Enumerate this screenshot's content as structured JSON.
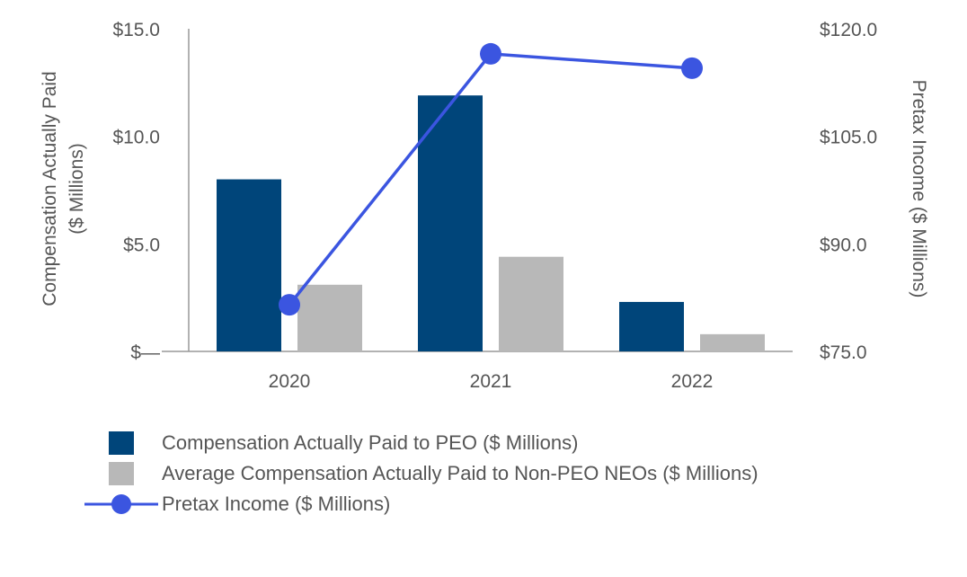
{
  "chart_data": {
    "type": "bar",
    "categories": [
      "2020",
      "2021",
      "2022"
    ],
    "series": [
      {
        "name": "Compensation Actually Paid to PEO ($ Millions)",
        "kind": "bar",
        "axis": "left",
        "color": "#00457A",
        "values": [
          8.0,
          11.9,
          2.3
        ]
      },
      {
        "name": "Average Compensation Actually Paid to Non-PEO NEOs ($ Millions)",
        "kind": "bar",
        "axis": "left",
        "color": "#B8B8B8",
        "values": [
          3.1,
          4.4,
          0.8
        ]
      },
      {
        "name": "Pretax Income ($ Millions)",
        "kind": "line",
        "axis": "right",
        "color": "#3B55E0",
        "values": [
          81.5,
          116.5,
          114.5
        ]
      }
    ],
    "left_axis": {
      "label_line1": "Compensation Actually Paid",
      "label_line2": "($ Millions)",
      "ylim": [
        0,
        15
      ],
      "ticks": [
        0,
        5,
        10,
        15
      ],
      "tick_labels": [
        "$—",
        "$5.0",
        "$10.0",
        "$15.0"
      ]
    },
    "right_axis": {
      "label": "Pretax Income ($ Millions)",
      "ylim": [
        75,
        120
      ],
      "ticks": [
        75,
        90,
        105,
        120
      ],
      "tick_labels": [
        "$75.0",
        "$90.0",
        "$105.0",
        "$120.0"
      ]
    },
    "grid": false,
    "legend_position": "bottom-left"
  }
}
